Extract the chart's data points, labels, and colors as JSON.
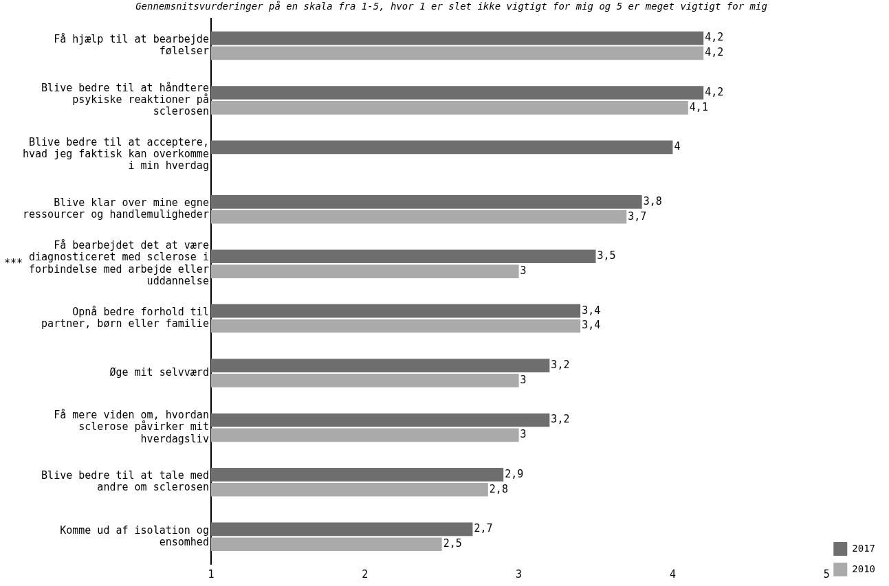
{
  "chart_data": {
    "type": "bar",
    "orientation": "horizontal",
    "title": "Gennemsnitsvurderinger på en skala fra 1-5, hvor 1 er slet ikke vigtigt for mig og 5 er meget vigtigt for mig",
    "categories": [
      "Få hjælp til at bearbejde følelser",
      "Blive bedre til at håndtere psykiske reaktioner på sclerosen",
      "Blive bedre til at acceptere, hvad jeg faktisk kan overkomme i min hverdag",
      "Blive klar over mine egne ressourcer og handlemuligheder",
      "Få bearbejdet det at være diagnosticeret med sclerose i forbindelse med arbejde eller uddannelse",
      "Opnå bedre forhold til partner, børn eller familie",
      "Øge mit selvværd",
      "Få mere viden om, hvordan sclerose påvirker mit hverdagsliv",
      "Blive bedre til at tale med andre om sclerosen",
      "Komme ud af isolation og ensomhed"
    ],
    "series": [
      {
        "name": "2017",
        "color": "#6e6e6e",
        "values": [
          4.2,
          4.2,
          4,
          3.8,
          3.5,
          3.4,
          3.2,
          3.2,
          2.9,
          2.7
        ],
        "value_labels": [
          "4,2",
          "4,2",
          "4",
          "3,8",
          "3,5",
          "3,4",
          "3,2",
          "3,2",
          "2,9",
          "2,7"
        ]
      },
      {
        "name": "2010",
        "color": "#aaaaaa",
        "values": [
          4.2,
          4.1,
          null,
          3.7,
          3,
          3.4,
          3,
          3,
          2.8,
          2.5
        ],
        "value_labels": [
          "4,2",
          "4,1",
          null,
          "3,7",
          "3",
          "3,4",
          "3",
          "3",
          "2,8",
          "2,5"
        ]
      }
    ],
    "xlim": [
      1,
      5
    ],
    "xticks": [
      1,
      2,
      3,
      4,
      5
    ],
    "grid": false,
    "legend": "bottom right",
    "annotations": [
      "***"
    ]
  }
}
